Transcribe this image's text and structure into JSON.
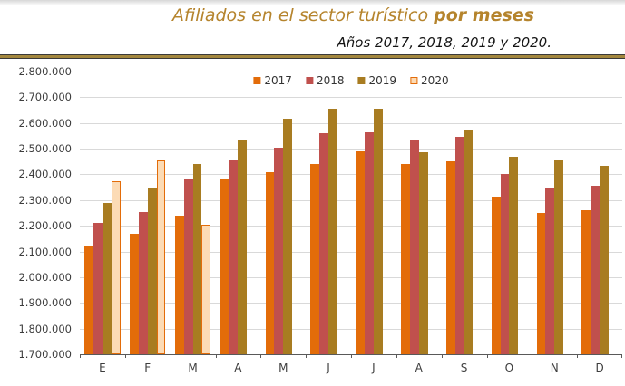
{
  "page": {
    "title": {
      "prefix": "Afiliados en el sector turístico ",
      "emphasis": "por meses"
    },
    "subtitle": "Años 2017, 2018, 2019 y 2020."
  },
  "colors": {
    "title_gold": "#B5842D",
    "divider_gold": "#A3873E",
    "gridline": "#D9D9D9",
    "axis": "#595959",
    "label_text": "#3d3d3d",
    "series_2017": "#E36C09",
    "series_2018": "#C0504D",
    "series_2019": "#A87C21",
    "series_2020_fill": "#FCDBB5",
    "series_2020_border": "#E36C09"
  },
  "chart_data": {
    "type": "bar",
    "title": "Afiliados en el sector turístico por meses",
    "subtitle": "Años 2017, 2018, 2019 y 2020.",
    "categories": [
      "E",
      "F",
      "M",
      "A",
      "M",
      "J",
      "J",
      "A",
      "S",
      "O",
      "N",
      "D"
    ],
    "series": [
      {
        "name": "2017",
        "color": "#E36C09",
        "values": [
          2120000,
          2170000,
          2240000,
          2380000,
          2410000,
          2440000,
          2490000,
          2440000,
          2450000,
          2315000,
          2250000,
          2260000
        ]
      },
      {
        "name": "2018",
        "color": "#C0504D",
        "values": [
          2210000,
          2255000,
          2385000,
          2455000,
          2505000,
          2560000,
          2565000,
          2535000,
          2545000,
          2400000,
          2345000,
          2355000
        ]
      },
      {
        "name": "2019",
        "color": "#A87C21",
        "values": [
          2290000,
          2350000,
          2440000,
          2535000,
          2615000,
          2655000,
          2655000,
          2485000,
          2575000,
          2470000,
          2455000,
          2435000
        ]
      },
      {
        "name": "2020",
        "color": "#FCDBB5",
        "border": "#E36C09",
        "values": [
          2375000,
          2455000,
          2205000,
          null,
          null,
          null,
          null,
          null,
          null,
          null,
          null,
          null
        ]
      }
    ],
    "ylim": [
      1700000,
      2800000
    ],
    "ytick_step": 100000,
    "ytick_labels": [
      "2.800.000",
      "2.700.000",
      "2.600.000",
      "2.500.000",
      "2.400.000",
      "2.300.000",
      "2.200.000",
      "2.100.000",
      "2.000.000",
      "1.900.000",
      "1.800.000",
      "1.700.000"
    ],
    "xlabel": "",
    "ylabel": "",
    "grid": true,
    "legend_position": "top-center"
  }
}
